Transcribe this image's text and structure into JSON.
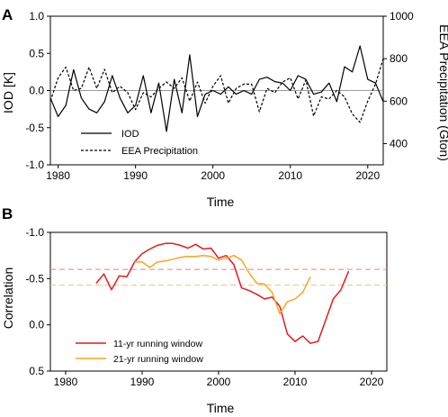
{
  "chart_data": [
    {
      "panel_label": "A",
      "type": "line",
      "xlabel": "Time",
      "ylabel": "IOD [K]",
      "y2label": "EEA Precipitation (Gton)",
      "xlim": [
        1979,
        2022
      ],
      "ylim": [
        -1.0,
        1.0
      ],
      "y2lim": [
        300,
        1000
      ],
      "xticks": [
        1980,
        1990,
        2000,
        2010,
        2020
      ],
      "yticks": [
        -1.0,
        -0.5,
        0.0,
        0.5,
        1.0
      ],
      "y2ticks": [
        400,
        600,
        800,
        1000
      ],
      "reference_line": 0.0,
      "legend_position": "lower-left",
      "x": [
        1979,
        1980,
        1981,
        1982,
        1983,
        1984,
        1985,
        1986,
        1987,
        1988,
        1989,
        1990,
        1991,
        1992,
        1993,
        1994,
        1995,
        1996,
        1997,
        1998,
        1999,
        2000,
        2001,
        2002,
        2003,
        2004,
        2005,
        2006,
        2007,
        2008,
        2009,
        2010,
        2011,
        2012,
        2013,
        2014,
        2015,
        2016,
        2017,
        2018,
        2019,
        2020,
        2021,
        2022
      ],
      "series": [
        {
          "name": "IOD",
          "axis": "left",
          "style": "solid",
          "values": [
            -0.1,
            -0.35,
            -0.2,
            0.28,
            -0.1,
            -0.25,
            -0.3,
            -0.15,
            0.2,
            -0.1,
            -0.3,
            -0.2,
            0.2,
            -0.3,
            0.1,
            -0.55,
            0.15,
            -0.3,
            0.48,
            -0.35,
            -0.05,
            0.0,
            -0.05,
            0.05,
            -0.05,
            0.0,
            -0.05,
            0.15,
            0.18,
            0.12,
            0.1,
            0.0,
            0.2,
            0.15,
            -0.05,
            -0.02,
            0.1,
            -0.15,
            0.32,
            0.25,
            0.6,
            0.15,
            0.1,
            -0.15
          ]
        },
        {
          "name": "EEA Precipitation",
          "axis": "right",
          "style": "dashed",
          "values": [
            600,
            710,
            760,
            650,
            660,
            760,
            660,
            750,
            640,
            670,
            640,
            560,
            640,
            620,
            660,
            690,
            660,
            710,
            600,
            690,
            590,
            670,
            720,
            590,
            660,
            680,
            680,
            550,
            660,
            640,
            690,
            710,
            610,
            700,
            530,
            620,
            610,
            650,
            620,
            540,
            500,
            600,
            680,
            800
          ]
        }
      ]
    },
    {
      "panel_label": "B",
      "type": "line",
      "xlabel": "Time",
      "ylabel": "Correlation",
      "xlim": [
        1978,
        2022
      ],
      "ylim": [
        0.5,
        -1.0
      ],
      "y_inverted": true,
      "xticks": [
        1980,
        1990,
        2000,
        2010,
        2020
      ],
      "yticks": [
        -1.0,
        -0.5,
        0.0,
        0.5
      ],
      "legend_position": "lower-left",
      "reference_lines": [
        {
          "value": -0.6,
          "color": "#f08080"
        },
        {
          "value": -0.43,
          "color": "#f5c57a"
        }
      ],
      "series": [
        {
          "name": "11-yr running window",
          "color": "#e41a1c",
          "x": [
            1984,
            1985,
            1986,
            1987,
            1988,
            1989,
            1990,
            1991,
            1992,
            1993,
            1994,
            1995,
            1996,
            1997,
            1998,
            1999,
            2000,
            2001,
            2002,
            2003,
            2004,
            2005,
            2006,
            2007,
            2008,
            2009,
            2010,
            2011,
            2012,
            2013,
            2014,
            2015,
            2016,
            2017
          ],
          "values": [
            -0.45,
            -0.55,
            -0.38,
            -0.53,
            -0.52,
            -0.68,
            -0.77,
            -0.82,
            -0.86,
            -0.88,
            -0.88,
            -0.86,
            -0.83,
            -0.87,
            -0.82,
            -0.83,
            -0.72,
            -0.75,
            -0.65,
            -0.4,
            -0.37,
            -0.33,
            -0.28,
            -0.3,
            -0.2,
            0.1,
            0.18,
            0.12,
            0.2,
            0.18,
            -0.05,
            -0.28,
            -0.38,
            -0.58
          ]
        },
        {
          "name": "21-yr running window",
          "color": "#f5a623",
          "x": [
            1989,
            1990,
            1991,
            1992,
            1993,
            1994,
            1995,
            1996,
            1997,
            1998,
            1999,
            2000,
            2001,
            2002,
            2003,
            2004,
            2005,
            2006,
            2007,
            2008,
            2009,
            2010,
            2011,
            2012
          ],
          "values": [
            -0.68,
            -0.68,
            -0.62,
            -0.68,
            -0.69,
            -0.71,
            -0.73,
            -0.74,
            -0.74,
            -0.75,
            -0.74,
            -0.7,
            -0.72,
            -0.75,
            -0.7,
            -0.56,
            -0.45,
            -0.44,
            -0.35,
            -0.12,
            -0.25,
            -0.28,
            -0.35,
            -0.52
          ]
        }
      ]
    }
  ]
}
